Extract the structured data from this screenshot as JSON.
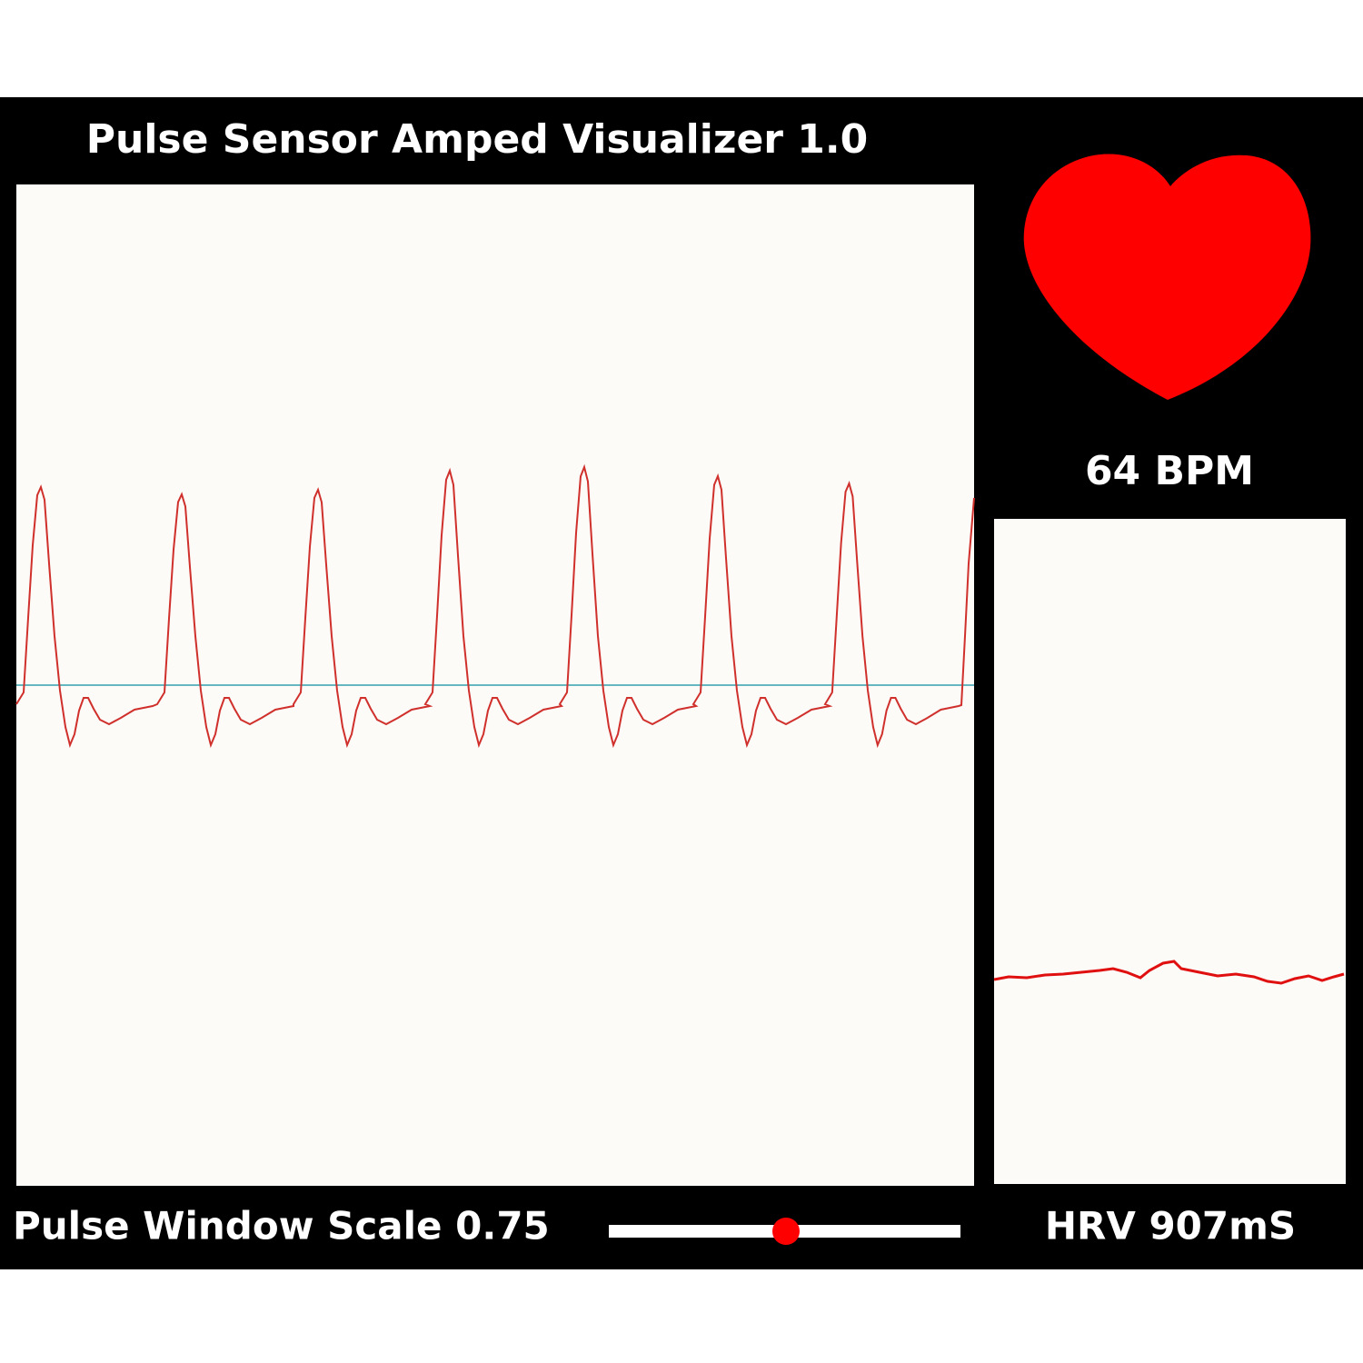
{
  "header": {
    "title": "Pulse Sensor Amped Visualizer 1.0"
  },
  "heart_panel": {
    "bpm": "64 BPM"
  },
  "controls": {
    "scale_label": "Pulse Window Scale 0.75"
  },
  "hrv_panel": {
    "label": "HRV 907mS"
  }
}
